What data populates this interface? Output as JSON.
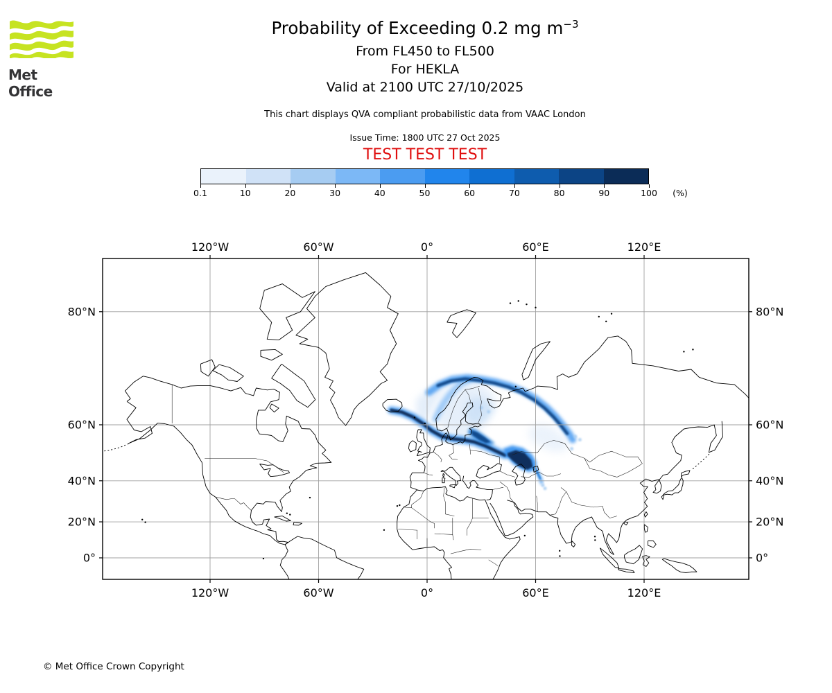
{
  "header": {
    "brand": "Met Office",
    "logo_green": "#C6E321",
    "title": {
      "text": "Probability of Exceeding 0.2 mg m",
      "superscript": "−3"
    },
    "subtitle_lines": [
      "From FL450 to FL500",
      "For HEKLA",
      "Valid at 2100 UTC 27/10/2025"
    ],
    "note": "This chart displays QVA compliant probabilistic data from VAAC London",
    "issue_time": "Issue Time: 1800 UTC 27 Oct 2025",
    "test_banner": "TEST TEST TEST",
    "test_banner_color": "#E01010"
  },
  "footer": {
    "copyright": "© Met Office Crown Copyright"
  },
  "chart_data": {
    "type": "heatmap",
    "title": "Probability of Exceeding 0.2 mg m−3",
    "subtitle": "From FL450 to FL500 / For HEKLA / Valid at 2100 UTC 27/10/2025",
    "legend_position": "top",
    "grid": true,
    "colorbar": {
      "unit": "(%)",
      "tick_labels": [
        "0.1",
        "10",
        "20",
        "30",
        "40",
        "50",
        "60",
        "70",
        "80",
        "90",
        "100"
      ],
      "tick_values": [
        0.1,
        10,
        20,
        30,
        40,
        50,
        60,
        70,
        80,
        90,
        100
      ],
      "colors": [
        "#EAF2FB",
        "#D0E2F7",
        "#A6CCF2",
        "#7CB8F6",
        "#4B9CF1",
        "#2185EC",
        "#0F6FD2",
        "#0E5CAE",
        "#0C4485",
        "#0B2C57"
      ]
    },
    "map": {
      "projection": "mercator",
      "lon_range": [
        -180,
        178.5
      ],
      "lat_range": [
        -12.1,
        84.1
      ],
      "grid_color": "#A0A0A0",
      "coast_color": "#000000",
      "lon_ticks": [
        {
          "lon": -120,
          "label": "120°W"
        },
        {
          "lon": -60,
          "label": "60°W"
        },
        {
          "lon": 0,
          "label": "0°"
        },
        {
          "lon": 60,
          "label": "60°E"
        },
        {
          "lon": 120,
          "label": "120°E"
        }
      ],
      "lat_ticks": [
        {
          "lat": 80,
          "label": "80°N"
        },
        {
          "lat": 60,
          "label": "60°N"
        },
        {
          "lat": 40,
          "label": "40°N"
        },
        {
          "lat": 20,
          "label": "20°N"
        },
        {
          "lat": 0,
          "label": "0°"
        }
      ]
    },
    "plume": {
      "source_volcano": "HEKLA",
      "threshold": "0.2 mg m−3",
      "bands": [
        {
          "name": "west-fan-diffuse",
          "type": "fill",
          "color": "#CFE1F6",
          "opacity": 0.55,
          "blur": 5,
          "points": [
            [
              -6,
              66.5
            ],
            [
              0,
              68.5
            ],
            [
              6,
              70
            ],
            [
              14,
              71
            ],
            [
              10,
              69
            ],
            [
              5,
              66
            ],
            [
              1,
              62.5
            ],
            [
              -2,
              59.5
            ],
            [
              -5,
              61
            ],
            [
              -6,
              63.5
            ]
          ]
        },
        {
          "name": "scandinavia-diffuse",
          "type": "fill",
          "color": "#CFE1F6",
          "opacity": 0.5,
          "blur": 6,
          "points": [
            [
              4,
              63
            ],
            [
              8,
              66.5
            ],
            [
              13,
              69
            ],
            [
              20,
              70.5
            ],
            [
              28,
              70
            ],
            [
              35,
              68.5
            ],
            [
              38,
              66
            ],
            [
              34,
              62
            ],
            [
              29,
              58
            ],
            [
              25,
              56.5
            ],
            [
              19,
              56
            ],
            [
              13,
              57.5
            ],
            [
              7,
              60
            ]
          ]
        },
        {
          "name": "finland-diffuse",
          "type": "fill",
          "color": "#A6CCF2",
          "opacity": 0.35,
          "blur": 5,
          "points": [
            [
              22,
              66
            ],
            [
              28,
              67
            ],
            [
              34,
              66
            ],
            [
              38,
              64.5
            ],
            [
              34,
              61.5
            ],
            [
              28,
              60
            ],
            [
              24,
              60.5
            ],
            [
              21,
              62.5
            ]
          ]
        },
        {
          "name": "east-diffuse",
          "type": "fill",
          "color": "#CFE1F6",
          "opacity": 0.4,
          "blur": 6,
          "points": [
            [
              56,
              58.5
            ],
            [
              62,
              60.5
            ],
            [
              69,
              59.5
            ],
            [
              75,
              57
            ],
            [
              79,
              54
            ],
            [
              76,
              51.5
            ],
            [
              69,
              51.5
            ],
            [
              62,
              53.5
            ],
            [
              57,
              55.5
            ]
          ]
        },
        {
          "name": "ukraine-diffuse",
          "type": "fill",
          "color": "#A6CCF2",
          "opacity": 0.35,
          "blur": 5,
          "points": [
            [
              30,
              54.5
            ],
            [
              38,
              53
            ],
            [
              44,
              51.5
            ],
            [
              42,
              50
            ],
            [
              35,
              51.5
            ],
            [
              29,
              53
            ]
          ]
        },
        {
          "name": "norway-coast-band",
          "type": "stroke",
          "color": "#7CB8F6",
          "width": 9,
          "opacity": 0.7,
          "blur": 3,
          "points": [
            [
              4.5,
              61.5
            ],
            [
              6.5,
              63.5
            ],
            [
              9,
              65.5
            ],
            [
              12,
              67.3
            ],
            [
              15.5,
              68.8
            ],
            [
              19,
              69.9
            ],
            [
              23,
              70.5
            ]
          ]
        },
        {
          "name": "north-arc-medium",
          "type": "stroke",
          "color": "#4B9CF1",
          "width": 10,
          "opacity": 0.85,
          "blur": 2.5,
          "points": [
            [
              1,
              68
            ],
            [
              7,
              69.6
            ],
            [
              14,
              70.6
            ],
            [
              22,
              70.9
            ],
            [
              30,
              70.6
            ],
            [
              38,
              70.1
            ],
            [
              46,
              69.3
            ],
            [
              53,
              68.2
            ],
            [
              60,
              66.6
            ],
            [
              66,
              64.6
            ],
            [
              71,
              62.3
            ],
            [
              75,
              59.9
            ],
            [
              78.5,
              57.4
            ],
            [
              80.5,
              55.5
            ]
          ]
        },
        {
          "name": "north-arc-core",
          "type": "stroke",
          "color": "#0C4485",
          "width": 4.5,
          "opacity": 0.95,
          "blur": 1.2,
          "points": [
            [
              6,
              69.4
            ],
            [
              13,
              70.3
            ],
            [
              21,
              70.7
            ],
            [
              29,
              70.4
            ],
            [
              37,
              69.9
            ],
            [
              45,
              69.1
            ],
            [
              52,
              68
            ],
            [
              59,
              66.4
            ],
            [
              65,
              64.4
            ],
            [
              70,
              62.1
            ],
            [
              74,
              59.8
            ],
            [
              77.5,
              57.4
            ]
          ]
        },
        {
          "name": "main-streak-medium",
          "type": "stroke",
          "color": "#4B9CF1",
          "width": 11,
          "opacity": 0.9,
          "blur": 2.5,
          "points": [
            [
              -19.8,
              63.9
            ],
            [
              -14,
              63.4
            ],
            [
              -8,
              62.2
            ],
            [
              -2.5,
              60.4
            ],
            [
              2.5,
              58.3
            ],
            [
              8,
              56.6
            ],
            [
              14,
              55.8
            ],
            [
              20,
              55.4
            ],
            [
              26,
              54.8
            ],
            [
              32,
              53.5
            ],
            [
              38,
              51.7
            ],
            [
              43,
              50.2
            ]
          ]
        },
        {
          "name": "main-streak-core",
          "type": "stroke",
          "color": "#0B2C57",
          "width": 4.5,
          "opacity": 0.95,
          "blur": 1,
          "points": [
            [
              -19.8,
              63.9
            ],
            [
              -14,
              63.4
            ],
            [
              -8,
              62.2
            ],
            [
              -2.5,
              60.4
            ],
            [
              2.5,
              58.3
            ],
            [
              8,
              56.6
            ],
            [
              14,
              55.8
            ],
            [
              20,
              55.4
            ],
            [
              26,
              54.8
            ],
            [
              32,
              53.5
            ],
            [
              38,
              51.7
            ],
            [
              43,
              50.2
            ]
          ]
        },
        {
          "name": "baltic-patch",
          "type": "fill",
          "color": "#0F6FD2",
          "opacity": 0.8,
          "blur": 2,
          "points": [
            [
              23.5,
              59
            ],
            [
              27,
              58.6
            ],
            [
              31,
              57.2
            ],
            [
              35,
              55.5
            ],
            [
              37.5,
              54.3
            ],
            [
              34,
              53.8
            ],
            [
              29,
              54.9
            ],
            [
              25,
              56.3
            ],
            [
              22.5,
              57.6
            ]
          ]
        },
        {
          "name": "baltic-patch-core",
          "type": "fill",
          "color": "#0C4485",
          "opacity": 0.9,
          "blur": 1,
          "points": [
            [
              24.5,
              58.4
            ],
            [
              28,
              57.7
            ],
            [
              32,
              56.2
            ],
            [
              35,
              54.8
            ],
            [
              32.5,
              54.4
            ],
            [
              28.5,
              55.6
            ],
            [
              25,
              57
            ]
          ]
        },
        {
          "name": "volga-blob-medium",
          "type": "fill",
          "color": "#2185EC",
          "opacity": 0.85,
          "blur": 2,
          "points": [
            [
              42,
              52.5
            ],
            [
              47,
              53.6
            ],
            [
              53,
              52.8
            ],
            [
              58,
              50.5
            ],
            [
              60.5,
              47.5
            ],
            [
              60,
              44.8
            ],
            [
              56.5,
              43.6
            ],
            [
              52,
              44.8
            ],
            [
              47.5,
              47
            ],
            [
              44,
              49.5
            ]
          ]
        },
        {
          "name": "volga-blob-core",
          "type": "fill",
          "color": "#0B2C57",
          "opacity": 0.95,
          "blur": 1,
          "points": [
            [
              44.5,
              51
            ],
            [
              49,
              52
            ],
            [
              54,
              51
            ],
            [
              57.5,
              48.5
            ],
            [
              58.5,
              45.8
            ],
            [
              55.5,
              44.6
            ],
            [
              51,
              46
            ],
            [
              47,
              48.3
            ],
            [
              44.5,
              50
            ]
          ]
        },
        {
          "name": "south-tail-medium",
          "type": "stroke",
          "color": "#4B9CF1",
          "width": 5,
          "opacity": 0.8,
          "blur": 2,
          "points": [
            [
              59.5,
              45.5
            ],
            [
              61.5,
              43
            ],
            [
              62.8,
              40.8
            ],
            [
              63.3,
              39.2
            ]
          ]
        },
        {
          "name": "south-tail-core",
          "type": "stroke",
          "color": "#0F6FD2",
          "width": 2.5,
          "opacity": 0.9,
          "blur": 1,
          "points": [
            [
              59.5,
              45.3
            ],
            [
              61.3,
              43
            ],
            [
              62.5,
              41
            ]
          ]
        },
        {
          "name": "east-speckles",
          "type": "dots",
          "color": "#A6CCF2",
          "opacity": 0.8,
          "blur": 1,
          "r": 2.5,
          "points": [
            [
              82,
              56.5
            ],
            [
              84.5,
              55.5
            ],
            [
              80,
              52.5
            ],
            [
              64,
              38
            ],
            [
              65.2,
              36.6
            ],
            [
              34,
              63.5
            ],
            [
              30,
              64.5
            ]
          ]
        }
      ]
    }
  }
}
